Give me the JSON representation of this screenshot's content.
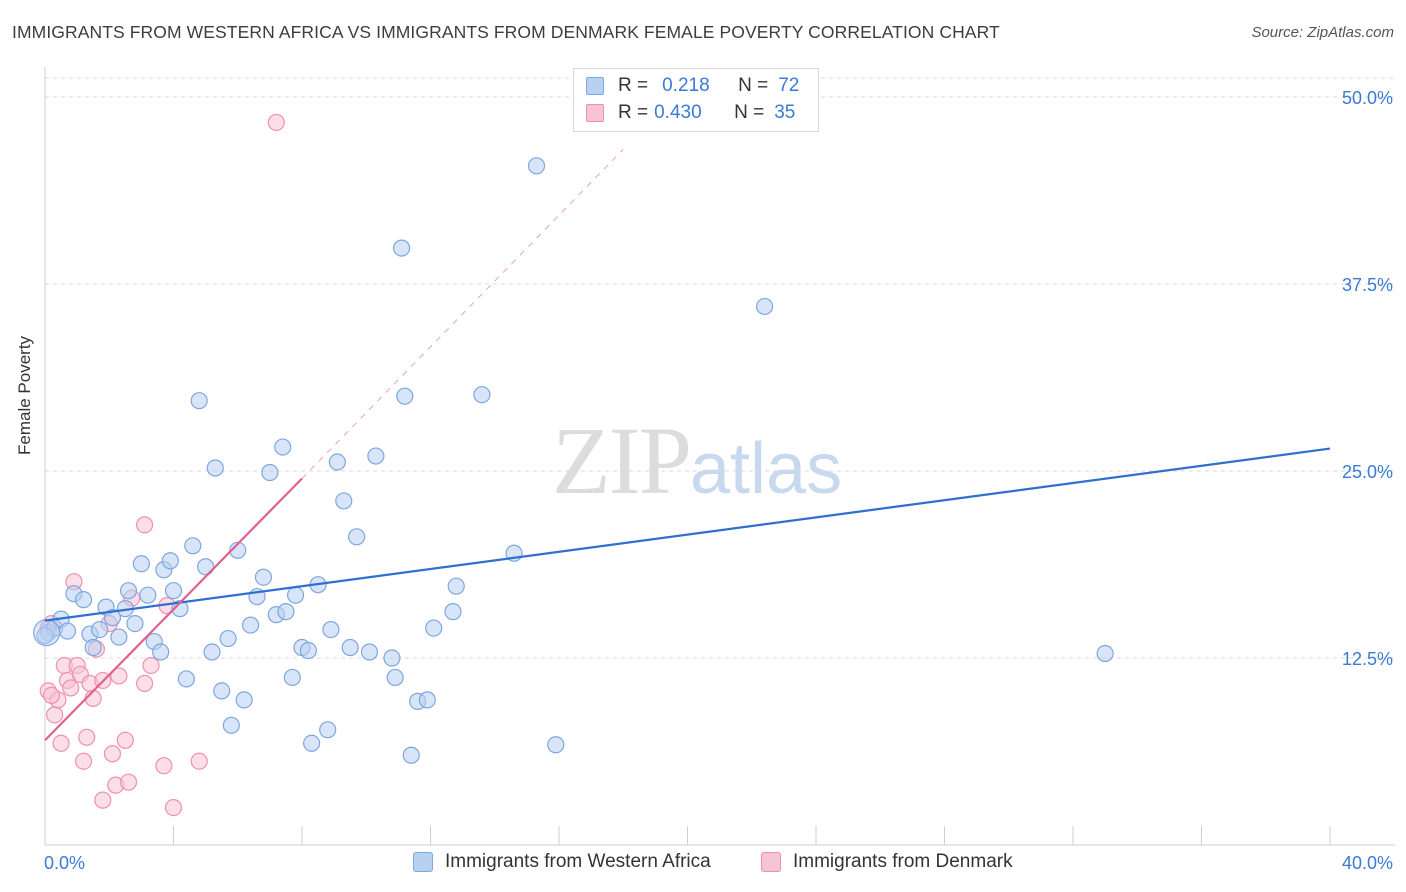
{
  "title": "IMMIGRANTS FROM WESTERN AFRICA VS IMMIGRANTS FROM DENMARK FEMALE POVERTY CORRELATION CHART",
  "source": "Source: ZipAtlas.com",
  "watermark": {
    "zip": "ZIP",
    "atlas": "atlas"
  },
  "legend": {
    "series1": {
      "r_label": "R =",
      "r_value": "0.218",
      "n_label": "N =",
      "n_value": "72"
    },
    "series2": {
      "r_label": "R =",
      "r_value": "0.430",
      "n_label": "N =",
      "n_value": "35"
    }
  },
  "bottom_legend": [
    "Immigrants from Western Africa",
    "Immigrants from Denmark"
  ],
  "colors": {
    "blue_fill": "#b8d0f2",
    "blue_stroke": "#7ea7e0",
    "blue_line": "#2e6fd0",
    "pink_fill": "#f8c3d4",
    "pink_stroke": "#ee90b0",
    "pink_line": "#e0608e",
    "axis_text": "#3a7bd5",
    "grid": "#d8d8d8"
  },
  "chart_data": {
    "type": "scatter",
    "title": "IMMIGRANTS FROM WESTERN AFRICA VS IMMIGRANTS FROM DENMARK FEMALE POVERTY CORRELATION CHART",
    "xlabel": "",
    "ylabel": "Female Poverty",
    "xlim": [
      0,
      40
    ],
    "ylim": [
      0,
      50
    ],
    "x_tick_labels": [
      "0.0%",
      "40.0%"
    ],
    "y_ticks": [
      12.5,
      25.0,
      37.5,
      50.0
    ],
    "y_tick_labels": [
      "12.5%",
      "25.0%",
      "37.5%",
      "50.0%"
    ],
    "series": [
      {
        "name": "Immigrants from Western Africa",
        "color": "blue",
        "trend": {
          "x": [
            0,
            40
          ],
          "y": [
            15.0,
            26.5
          ],
          "style": "solid"
        },
        "points": [
          [
            0.1,
            14.2
          ],
          [
            0.3,
            14.5
          ],
          [
            0.5,
            15.1
          ],
          [
            0.7,
            14.3
          ],
          [
            0.9,
            16.8
          ],
          [
            1.2,
            16.4
          ],
          [
            1.4,
            14.1
          ],
          [
            1.5,
            13.2
          ],
          [
            1.7,
            14.4
          ],
          [
            1.9,
            15.9
          ],
          [
            2.1,
            15.2
          ],
          [
            2.3,
            13.9
          ],
          [
            2.5,
            15.8
          ],
          [
            2.6,
            17.0
          ],
          [
            2.8,
            14.8
          ],
          [
            3.0,
            18.8
          ],
          [
            3.2,
            16.7
          ],
          [
            3.4,
            13.6
          ],
          [
            3.6,
            12.9
          ],
          [
            3.7,
            18.4
          ],
          [
            3.9,
            19.0
          ],
          [
            4.0,
            17.0
          ],
          [
            4.2,
            15.8
          ],
          [
            4.4,
            11.1
          ],
          [
            4.6,
            20.0
          ],
          [
            4.8,
            29.7
          ],
          [
            5.0,
            18.6
          ],
          [
            5.2,
            12.9
          ],
          [
            5.3,
            25.2
          ],
          [
            5.5,
            10.3
          ],
          [
            5.7,
            13.8
          ],
          [
            5.8,
            8.0
          ],
          [
            6.0,
            19.7
          ],
          [
            6.2,
            9.7
          ],
          [
            6.4,
            14.7
          ],
          [
            6.6,
            16.6
          ],
          [
            6.8,
            17.9
          ],
          [
            7.0,
            24.9
          ],
          [
            7.2,
            15.4
          ],
          [
            7.4,
            26.6
          ],
          [
            7.5,
            15.6
          ],
          [
            7.7,
            11.2
          ],
          [
            7.8,
            16.7
          ],
          [
            8.0,
            13.2
          ],
          [
            8.2,
            13.0
          ],
          [
            8.3,
            6.8
          ],
          [
            8.5,
            17.4
          ],
          [
            8.8,
            7.7
          ],
          [
            8.9,
            14.4
          ],
          [
            9.1,
            25.6
          ],
          [
            9.3,
            23.0
          ],
          [
            9.5,
            13.2
          ],
          [
            9.7,
            20.6
          ],
          [
            10.1,
            12.9
          ],
          [
            10.3,
            26.0
          ],
          [
            10.8,
            12.5
          ],
          [
            10.9,
            11.2
          ],
          [
            11.1,
            39.9
          ],
          [
            11.2,
            30.0
          ],
          [
            11.4,
            6.0
          ],
          [
            11.6,
            9.6
          ],
          [
            11.9,
            9.7
          ],
          [
            12.1,
            14.5
          ],
          [
            12.7,
            15.6
          ],
          [
            12.8,
            17.3
          ],
          [
            13.6,
            30.1
          ],
          [
            14.6,
            19.5
          ],
          [
            15.3,
            45.4
          ],
          [
            15.9,
            6.7
          ],
          [
            22.4,
            36.0
          ],
          [
            33.0,
            12.8
          ],
          [
            0.0,
            14.0
          ]
        ]
      },
      {
        "name": "Immigrants from Denmark",
        "color": "pink",
        "trend": {
          "x": [
            0,
            8.0
          ],
          "y": [
            7.0,
            24.5
          ],
          "style": "solid",
          "extended": {
            "x": [
              8.0,
              18.0
            ],
            "y": [
              24.5,
              46.5
            ],
            "style": "dashed"
          }
        },
        "points": [
          [
            0.1,
            10.3
          ],
          [
            0.2,
            14.8
          ],
          [
            0.3,
            8.7
          ],
          [
            0.4,
            9.7
          ],
          [
            0.5,
            6.8
          ],
          [
            0.6,
            12.0
          ],
          [
            0.7,
            11.0
          ],
          [
            0.8,
            10.5
          ],
          [
            0.9,
            17.6
          ],
          [
            1.0,
            12.0
          ],
          [
            1.1,
            11.4
          ],
          [
            1.2,
            5.6
          ],
          [
            1.3,
            7.2
          ],
          [
            1.4,
            10.8
          ],
          [
            1.5,
            9.8
          ],
          [
            1.6,
            13.1
          ],
          [
            1.8,
            11.0
          ],
          [
            1.8,
            3.0
          ],
          [
            2.0,
            14.8
          ],
          [
            2.1,
            6.1
          ],
          [
            2.2,
            4.0
          ],
          [
            2.3,
            11.3
          ],
          [
            2.5,
            7.0
          ],
          [
            2.6,
            4.2
          ],
          [
            2.7,
            16.5
          ],
          [
            3.1,
            21.4
          ],
          [
            3.1,
            10.8
          ],
          [
            3.3,
            12.0
          ],
          [
            3.7,
            5.3
          ],
          [
            3.8,
            16.0
          ],
          [
            4.0,
            2.5
          ],
          [
            4.8,
            5.6
          ],
          [
            7.2,
            48.3
          ],
          [
            0.1,
            14.5
          ],
          [
            0.2,
            10.0
          ]
        ]
      }
    ]
  }
}
